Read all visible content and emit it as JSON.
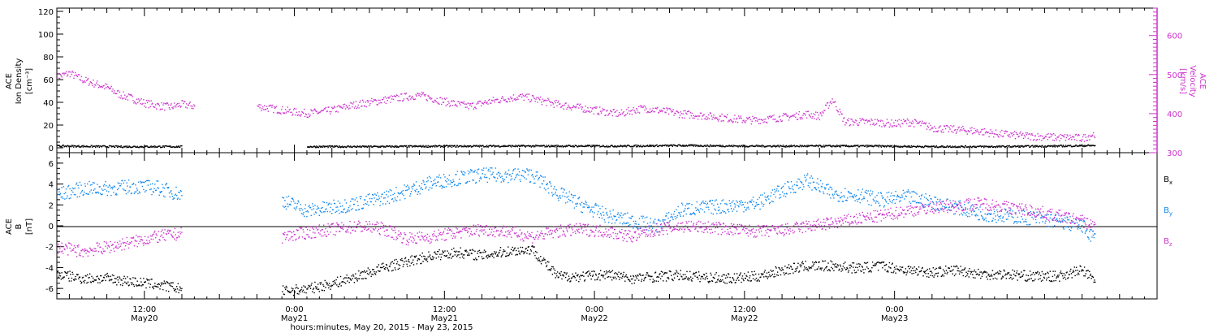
{
  "chart_data": [
    {
      "type": "scatter",
      "panel": "top",
      "ylabel_left": [
        "ACE",
        "Ion Density",
        "[cm⁻³]"
      ],
      "ylabel_right": [
        "ACE",
        "Velocity",
        "[km/s]"
      ],
      "ylim_left": [
        0,
        120
      ],
      "yticks_left": [
        "0",
        "20",
        "40",
        "60",
        "80",
        "100",
        "120"
      ],
      "ylim_right": [
        300,
        670
      ],
      "yticks_right": [
        "300",
        "400",
        "500",
        "600"
      ],
      "xlim_hours": [
        5,
        93
      ],
      "series": [
        {
          "color": "#cc33cc",
          "axis": "right",
          "x": [
            5,
            6,
            7,
            8,
            9,
            10,
            11,
            12,
            13,
            14,
            15,
            16,
            17,
            18,
            19,
            20,
            21,
            22,
            23,
            24,
            25,
            26,
            27,
            28,
            29,
            30,
            31,
            32,
            33,
            34,
            35,
            36,
            37,
            38,
            39,
            40,
            41,
            42,
            43,
            44,
            45,
            46,
            47,
            48,
            49,
            50,
            51,
            52,
            53,
            54,
            55,
            56,
            57,
            58,
            59,
            60,
            61,
            62,
            63,
            64,
            65,
            66,
            67,
            68,
            69,
            70,
            71,
            72,
            73,
            74,
            75,
            76,
            77,
            78,
            79,
            80,
            81,
            82,
            83,
            84,
            85,
            86,
            87,
            88
          ],
          "y": [
            495,
            505,
            488,
            478,
            468,
            450,
            440,
            428,
            422,
            418,
            425,
            420,
            null,
            null,
            null,
            null,
            420,
            415,
            410,
            405,
            402,
            405,
            410,
            418,
            425,
            430,
            435,
            440,
            445,
            448,
            440,
            432,
            425,
            420,
            428,
            435,
            440,
            445,
            440,
            432,
            425,
            420,
            415,
            410,
            405,
            400,
            410,
            415,
            410,
            405,
            400,
            398,
            395,
            392,
            388,
            385,
            385,
            388,
            392,
            395,
            400,
            395,
            438,
            380,
            380,
            380,
            378,
            375,
            380,
            375,
            365,
            362,
            360,
            358,
            355,
            350,
            348,
            345,
            343,
            342,
            340,
            340,
            338,
            350
          ]
        },
        {
          "color": "#000000",
          "axis": "left",
          "x": [
            5,
            10,
            15,
            20,
            25,
            30,
            35,
            40,
            45,
            50,
            55,
            60,
            65,
            70,
            75,
            80,
            85,
            88
          ],
          "y": [
            2,
            1.5,
            1.5,
            null,
            1.5,
            1.5,
            1.8,
            2,
            2,
            2,
            2.5,
            2,
            2,
            2,
            1.5,
            1.5,
            2,
            2.5
          ]
        }
      ]
    },
    {
      "type": "scatter",
      "panel": "bottom",
      "ylabel_left": [
        "ACE",
        "B",
        "[nT]"
      ],
      "ylim": [
        -7,
        7
      ],
      "yticks": [
        "-6",
        "-4",
        "-2",
        "0",
        "2",
        "4",
        "6"
      ],
      "xlim_hours": [
        5,
        93
      ],
      "legend": [
        {
          "label": "B",
          "sub": "x",
          "color": "#000000"
        },
        {
          "label": "B",
          "sub": "y",
          "color": "#1188ee"
        },
        {
          "label": "B",
          "sub": "z",
          "color": "#cc33cc"
        }
      ],
      "series": [
        {
          "label": "Bx",
          "color": "#000000",
          "x": [
            5,
            7,
            9,
            11,
            13,
            15,
            17,
            19,
            21,
            23,
            25,
            27,
            29,
            31,
            33,
            35,
            37,
            39,
            41,
            43,
            45,
            47,
            49,
            51,
            53,
            55,
            57,
            59,
            61,
            63,
            65,
            67,
            69,
            71,
            73,
            75,
            77,
            79,
            81,
            83,
            85,
            87,
            88
          ],
          "y": [
            -4.6,
            -5,
            -5,
            -5.3,
            -5.6,
            -6,
            null,
            null,
            null,
            -6.2,
            -6,
            -5.5,
            -4.8,
            -4,
            -3.4,
            -2.8,
            -2.5,
            -2.8,
            -2.4,
            -2.2,
            -4.8,
            -4.8,
            -4.6,
            -5,
            -4.8,
            -4.7,
            -4.9,
            -5,
            -4.8,
            -4.2,
            -3.8,
            -3.8,
            -4,
            -3.8,
            -4.2,
            -4.4,
            -4.2,
            -4.6,
            -4.6,
            -4.8,
            -4.8,
            -4.2,
            -5.2
          ]
        },
        {
          "label": "By",
          "color": "#1188ee",
          "x": [
            5,
            7,
            9,
            11,
            13,
            15,
            17,
            19,
            21,
            23,
            25,
            27,
            29,
            31,
            33,
            35,
            37,
            39,
            41,
            43,
            45,
            47,
            49,
            51,
            53,
            55,
            57,
            59,
            61,
            63,
            65,
            67,
            69,
            71,
            73,
            75,
            77,
            79,
            81,
            83,
            85,
            87,
            88
          ],
          "y": [
            3,
            3.6,
            3.6,
            3.8,
            3.7,
            3,
            null,
            null,
            null,
            2.5,
            1.5,
            1.8,
            2.2,
            2.7,
            3.4,
            4.2,
            4.6,
            4.9,
            4.9,
            4.9,
            3.2,
            2,
            1,
            0.5,
            0,
            1.6,
            1.8,
            2,
            2.2,
            3.4,
            4.4,
            3.1,
            3,
            2.5,
            2.8,
            2.3,
            1.8,
            1.2,
            1,
            0.8,
            0.5,
            0,
            -1.2
          ]
        },
        {
          "label": "Bz",
          "color": "#cc33cc",
          "x": [
            5,
            7,
            9,
            11,
            13,
            15,
            17,
            19,
            21,
            23,
            25,
            27,
            29,
            31,
            33,
            35,
            37,
            39,
            41,
            43,
            45,
            47,
            49,
            51,
            53,
            55,
            57,
            59,
            61,
            63,
            65,
            67,
            69,
            71,
            73,
            75,
            77,
            79,
            81,
            83,
            85,
            87,
            88
          ],
          "y": [
            -2,
            -2.4,
            -2,
            -1.5,
            -1,
            -0.7,
            null,
            null,
            null,
            -1,
            -0.6,
            -0.3,
            0,
            -0.2,
            -1.2,
            -1,
            -0.6,
            -0.3,
            -0.5,
            -1,
            -0.5,
            -0.3,
            -0.5,
            -1,
            -0.3,
            0,
            -0.1,
            -0.3,
            -0.5,
            -0.4,
            0,
            0.3,
            0.7,
            1,
            1.5,
            1.8,
            2,
            2.2,
            1.8,
            1.5,
            1,
            0.5,
            0
          ]
        }
      ]
    }
  ],
  "x_axis": {
    "ticks": [
      {
        "hour": 12,
        "time": "12:00",
        "date": "May20"
      },
      {
        "hour": 24,
        "time": "0:00",
        "date": "May21"
      },
      {
        "hour": 36,
        "time": "12:00",
        "date": "May21"
      },
      {
        "hour": 48,
        "time": "0:00",
        "date": "May22"
      },
      {
        "hour": 60,
        "time": "12:00",
        "date": "May22"
      },
      {
        "hour": 72,
        "time": "0:00",
        "date": "May23"
      }
    ],
    "title": "hours:minutes, May 20, 2015 - May 23, 2015"
  }
}
